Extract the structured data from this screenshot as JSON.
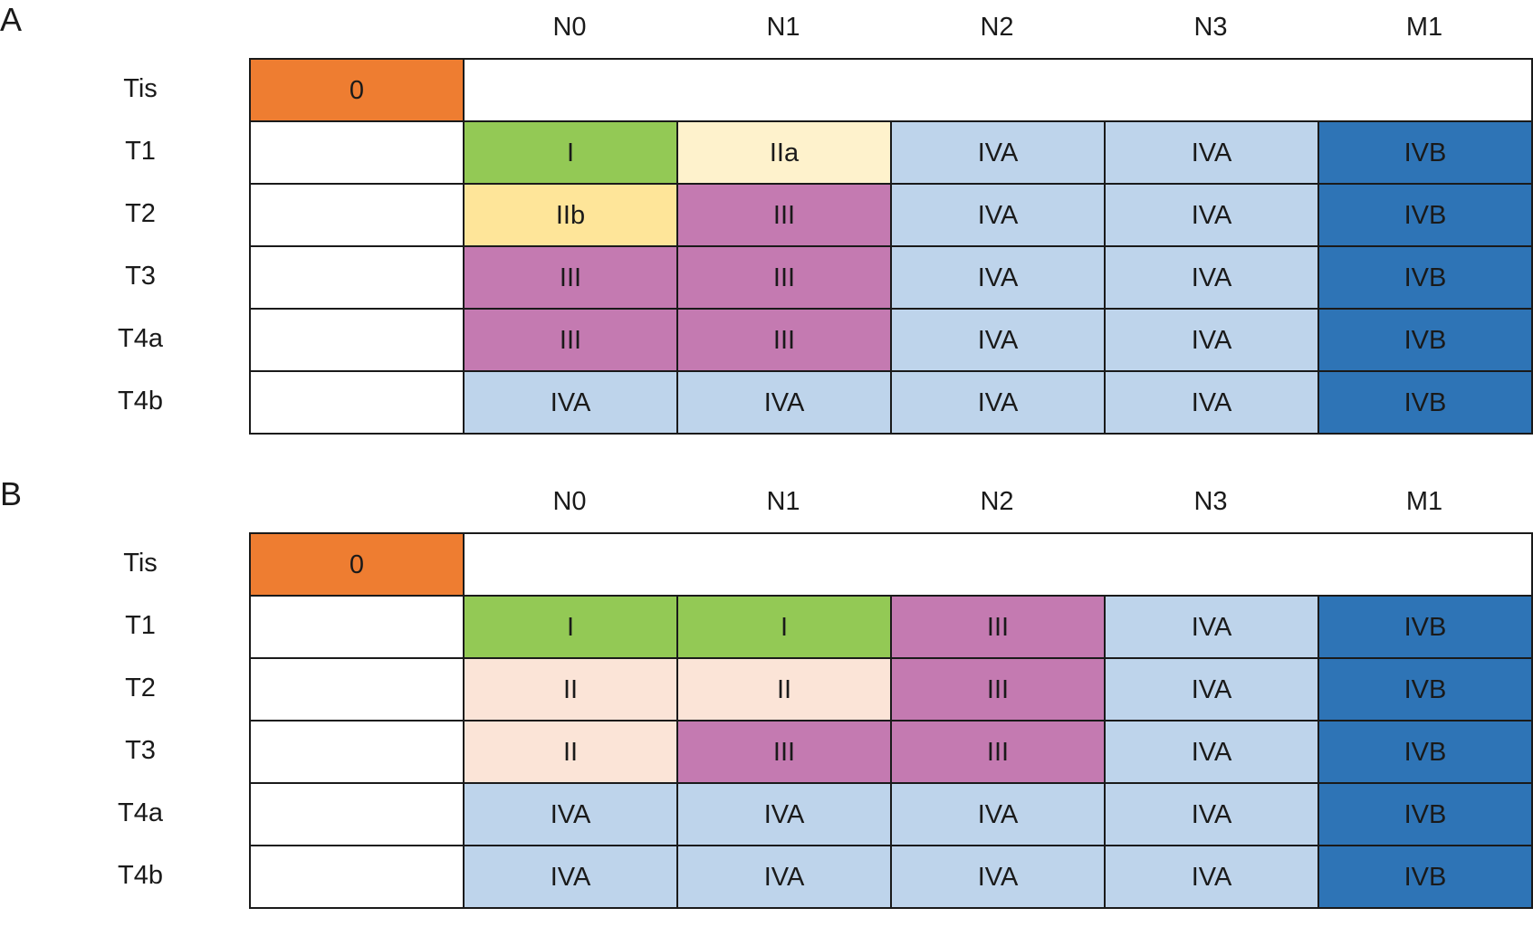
{
  "colors": {
    "0": "#ee7d31",
    "I": "#93c955",
    "IIa": "#fef2cc",
    "IIb": "#fee599",
    "II": "#fbe4d7",
    "III": "#c47ab1",
    "IVA": "#bed4eb",
    "IVB": "#2e74b6",
    "blank": "#ffffff"
  },
  "panels": [
    {
      "label": "A",
      "columns": [
        "N0",
        "N1",
        "N2",
        "N3",
        "M1"
      ],
      "tis_row": {
        "label": "Tis",
        "stage": "0"
      },
      "rows": [
        {
          "label": "T1",
          "stages": [
            "I",
            "IIa",
            "IVA",
            "IVA",
            "IVB"
          ]
        },
        {
          "label": "T2",
          "stages": [
            "IIb",
            "III",
            "IVA",
            "IVA",
            "IVB"
          ]
        },
        {
          "label": "T3",
          "stages": [
            "III",
            "III",
            "IVA",
            "IVA",
            "IVB"
          ]
        },
        {
          "label": "T4a",
          "stages": [
            "III",
            "III",
            "IVA",
            "IVA",
            "IVB"
          ]
        },
        {
          "label": "T4b",
          "stages": [
            "IVA",
            "IVA",
            "IVA",
            "IVA",
            "IVB"
          ]
        }
      ]
    },
    {
      "label": "B",
      "columns": [
        "N0",
        "N1",
        "N2",
        "N3",
        "M1"
      ],
      "tis_row": {
        "label": "Tis",
        "stage": "0"
      },
      "rows": [
        {
          "label": "T1",
          "stages": [
            "I",
            "I",
            "III",
            "IVA",
            "IVB"
          ]
        },
        {
          "label": "T2",
          "stages": [
            "II",
            "II",
            "III",
            "IVA",
            "IVB"
          ]
        },
        {
          "label": "T3",
          "stages": [
            "II",
            "III",
            "III",
            "IVA",
            "IVB"
          ]
        },
        {
          "label": "T4a",
          "stages": [
            "IVA",
            "IVA",
            "IVA",
            "IVA",
            "IVB"
          ]
        },
        {
          "label": "T4b",
          "stages": [
            "IVA",
            "IVA",
            "IVA",
            "IVA",
            "IVB"
          ]
        }
      ]
    }
  ]
}
